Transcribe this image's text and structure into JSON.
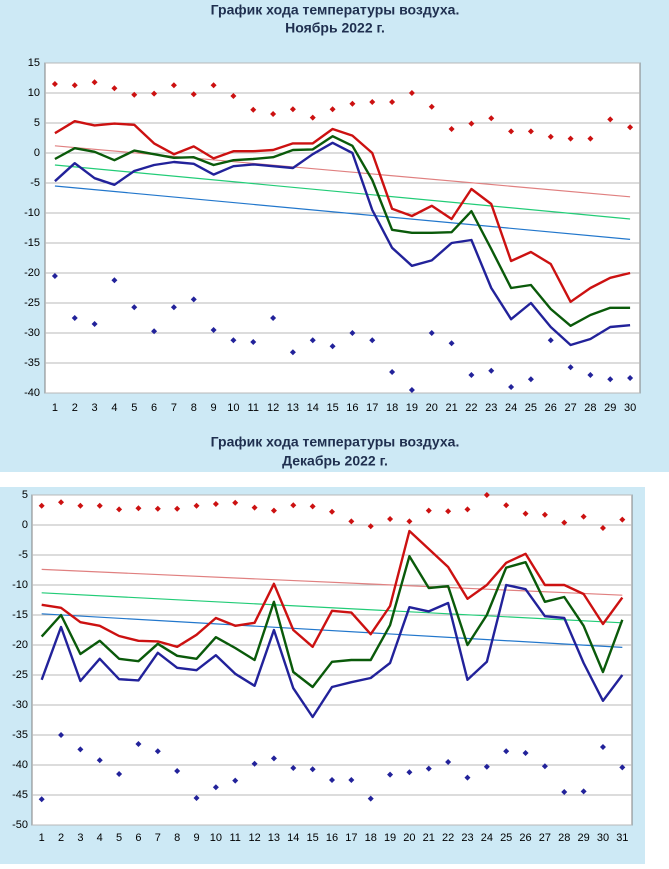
{
  "chart_data": [
    {
      "type": "line",
      "title": "График хода температуры воздуха.",
      "subtitle": "Ноябрь 2022 г.",
      "categories": [
        1,
        2,
        3,
        4,
        5,
        6,
        7,
        8,
        9,
        10,
        11,
        12,
        13,
        14,
        15,
        16,
        17,
        18,
        19,
        20,
        21,
        22,
        23,
        24,
        25,
        26,
        27,
        28,
        29,
        30
      ],
      "ylim": [
        -40,
        15
      ],
      "yticks": [
        -40,
        -35,
        -30,
        -25,
        -20,
        -15,
        -10,
        -5,
        0,
        5,
        10,
        15
      ],
      "grid": true,
      "series": [
        {
          "mode": "lines",
          "color": "#cc1111",
          "values": [
            3.3,
            5.3,
            4.6,
            4.9,
            4.7,
            1.6,
            -0.2,
            1.1,
            -0.9,
            0.3,
            0.3,
            0.5,
            1.6,
            1.6,
            4,
            2.9,
            0,
            -9.3,
            -10.5,
            -8.8,
            -11,
            -6,
            -8.5,
            -18,
            -16.5,
            -18.5,
            -24.8,
            -22.5,
            -20.8,
            -20
          ]
        },
        {
          "mode": "lines",
          "color": "#0a5a0a",
          "values": [
            -1,
            0.8,
            0.2,
            -1.2,
            0.4,
            -0.2,
            -0.8,
            -0.7,
            -2,
            -1.2,
            -1,
            -0.7,
            0.5,
            0.6,
            2.8,
            1.2,
            -4.5,
            -12.8,
            -13.3,
            -13.3,
            -13.2,
            -9.7,
            -16,
            -22.5,
            -22,
            -26,
            -28.8,
            -27,
            -25.8,
            -25.8
          ]
        },
        {
          "mode": "lines",
          "color": "#22229a",
          "values": [
            -4.7,
            -1.7,
            -4.2,
            -5.3,
            -3,
            -2,
            -1.5,
            -1.8,
            -3.6,
            -2.2,
            -1.9,
            -2.2,
            -2.5,
            -0.2,
            1.7,
            0,
            -9.5,
            -15.8,
            -18.8,
            -17.9,
            -15,
            -14.5,
            -22.5,
            -27.7,
            -25,
            -29,
            -32,
            -31,
            -29,
            -28.7
          ]
        },
        {
          "mode": "markers",
          "color": "#cc1111",
          "values": [
            11.5,
            11.3,
            11.8,
            10.8,
            9.7,
            9.9,
            11.3,
            9.8,
            11.3,
            9.5,
            7.2,
            6.5,
            7.3,
            5.9,
            7.3,
            8.2,
            8.5,
            8.5,
            10,
            7.7,
            4,
            4.9,
            5.8,
            3.6,
            3.6,
            2.7,
            2.4,
            2.4,
            5.6,
            4.3
          ]
        },
        {
          "mode": "markers",
          "color": "#22229a",
          "values": [
            -20.5,
            -27.5,
            -28.5,
            -21.2,
            -25.7,
            -29.7,
            -25.7,
            -24.4,
            -29.5,
            -31.2,
            -31.5,
            -27.5,
            -33.2,
            -31.2,
            -32.2,
            -30,
            -31.2,
            -36.5,
            -39.5,
            -30,
            -31.7,
            -37,
            -36.3,
            -39,
            -37.7,
            -31.2,
            -35.7,
            -37,
            -37.7,
            -37.5
          ]
        }
      ],
      "trendlines": [
        {
          "color": "#e08080",
          "x": [
            1,
            30
          ],
          "values": [
            1.2,
            -7.3
          ]
        },
        {
          "color": "#22cc77",
          "x": [
            1,
            30
          ],
          "values": [
            -2,
            -11
          ]
        },
        {
          "color": "#2277cc",
          "x": [
            1,
            30
          ],
          "values": [
            -5.5,
            -14.4
          ]
        }
      ]
    },
    {
      "type": "line",
      "title": "График хода температуры воздуха.",
      "subtitle": "Декабрь 2022 г.",
      "categories": [
        1,
        2,
        3,
        4,
        5,
        6,
        7,
        8,
        9,
        10,
        11,
        12,
        13,
        14,
        15,
        16,
        17,
        18,
        19,
        20,
        21,
        22,
        23,
        24,
        25,
        26,
        27,
        28,
        29,
        30,
        31
      ],
      "ylim": [
        -50,
        5
      ],
      "yticks": [
        -50,
        -45,
        -40,
        -35,
        -30,
        -25,
        -20,
        -15,
        -10,
        -5,
        0,
        5
      ],
      "grid": true,
      "series": [
        {
          "mode": "lines",
          "color": "#cc1111",
          "values": [
            -13.3,
            -13.8,
            -16.2,
            -16.8,
            -18.5,
            -19.3,
            -19.4,
            -20.3,
            -18.3,
            -15.5,
            -16.8,
            -16.3,
            -9.8,
            -17.5,
            -20.3,
            -14.3,
            -14.6,
            -18.2,
            -13.5,
            -1,
            -4,
            -7,
            -12.3,
            -10,
            -6.3,
            -4.8,
            -10,
            -10,
            -11.5,
            -16.5,
            -12.1
          ]
        },
        {
          "mode": "lines",
          "color": "#0a5a0a",
          "values": [
            -18.6,
            -15,
            -21.5,
            -19.3,
            -22.3,
            -22.7,
            -19.8,
            -21.8,
            -22.3,
            -18.7,
            -20.5,
            -22.5,
            -12.8,
            -24.5,
            -27,
            -22.8,
            -22.5,
            -22.5,
            -16.7,
            -5.2,
            -10.5,
            -10.2,
            -20,
            -15,
            -7.1,
            -6.2,
            -12.8,
            -12,
            -16.8,
            -24.5,
            -15.8
          ]
        },
        {
          "mode": "lines",
          "color": "#22229a",
          "values": [
            -25.8,
            -17,
            -26,
            -22.3,
            -25.7,
            -25.9,
            -21.3,
            -23.8,
            -24.2,
            -21.7,
            -24.8,
            -26.8,
            -17.5,
            -27.2,
            -32,
            -27,
            -26.2,
            -25.5,
            -23,
            -13.7,
            -14.4,
            -13,
            -25.8,
            -22.8,
            -10,
            -10.7,
            -15.2,
            -15.5,
            -23,
            -29.3,
            -25
          ]
        },
        {
          "mode": "markers",
          "color": "#cc1111",
          "values": [
            3.2,
            3.8,
            3.2,
            3.2,
            2.6,
            2.8,
            2.7,
            2.7,
            3.2,
            3.5,
            3.7,
            2.9,
            2.4,
            3.3,
            3.1,
            2.2,
            0.6,
            -0.2,
            1,
            0.6,
            2.4,
            2.3,
            2.6,
            5,
            3.3,
            1.9,
            1.7,
            0.4,
            1.4,
            -0.5,
            0.9
          ]
        },
        {
          "mode": "markers",
          "color": "#22229a",
          "values": [
            -45.7,
            -35,
            -37.4,
            -39.2,
            -41.5,
            -36.5,
            -37.7,
            -41,
            -45.5,
            -43.7,
            -42.6,
            -39.8,
            -38.9,
            -40.5,
            -40.7,
            -42.5,
            -42.5,
            -45.6,
            -41.6,
            -41.2,
            -40.6,
            -39.5,
            -42.1,
            -40.3,
            -37.7,
            -38,
            -40.2,
            -44.5,
            -44.4,
            -37,
            -40.4
          ]
        }
      ],
      "trendlines": [
        {
          "color": "#e08080",
          "x": [
            1,
            31
          ],
          "values": [
            -7.4,
            -11.7
          ]
        },
        {
          "color": "#22cc77",
          "x": [
            1,
            31
          ],
          "values": [
            -11.3,
            -16.3
          ]
        },
        {
          "color": "#2277cc",
          "x": [
            1,
            31
          ],
          "values": [
            -14.8,
            -20.4
          ]
        }
      ]
    }
  ]
}
